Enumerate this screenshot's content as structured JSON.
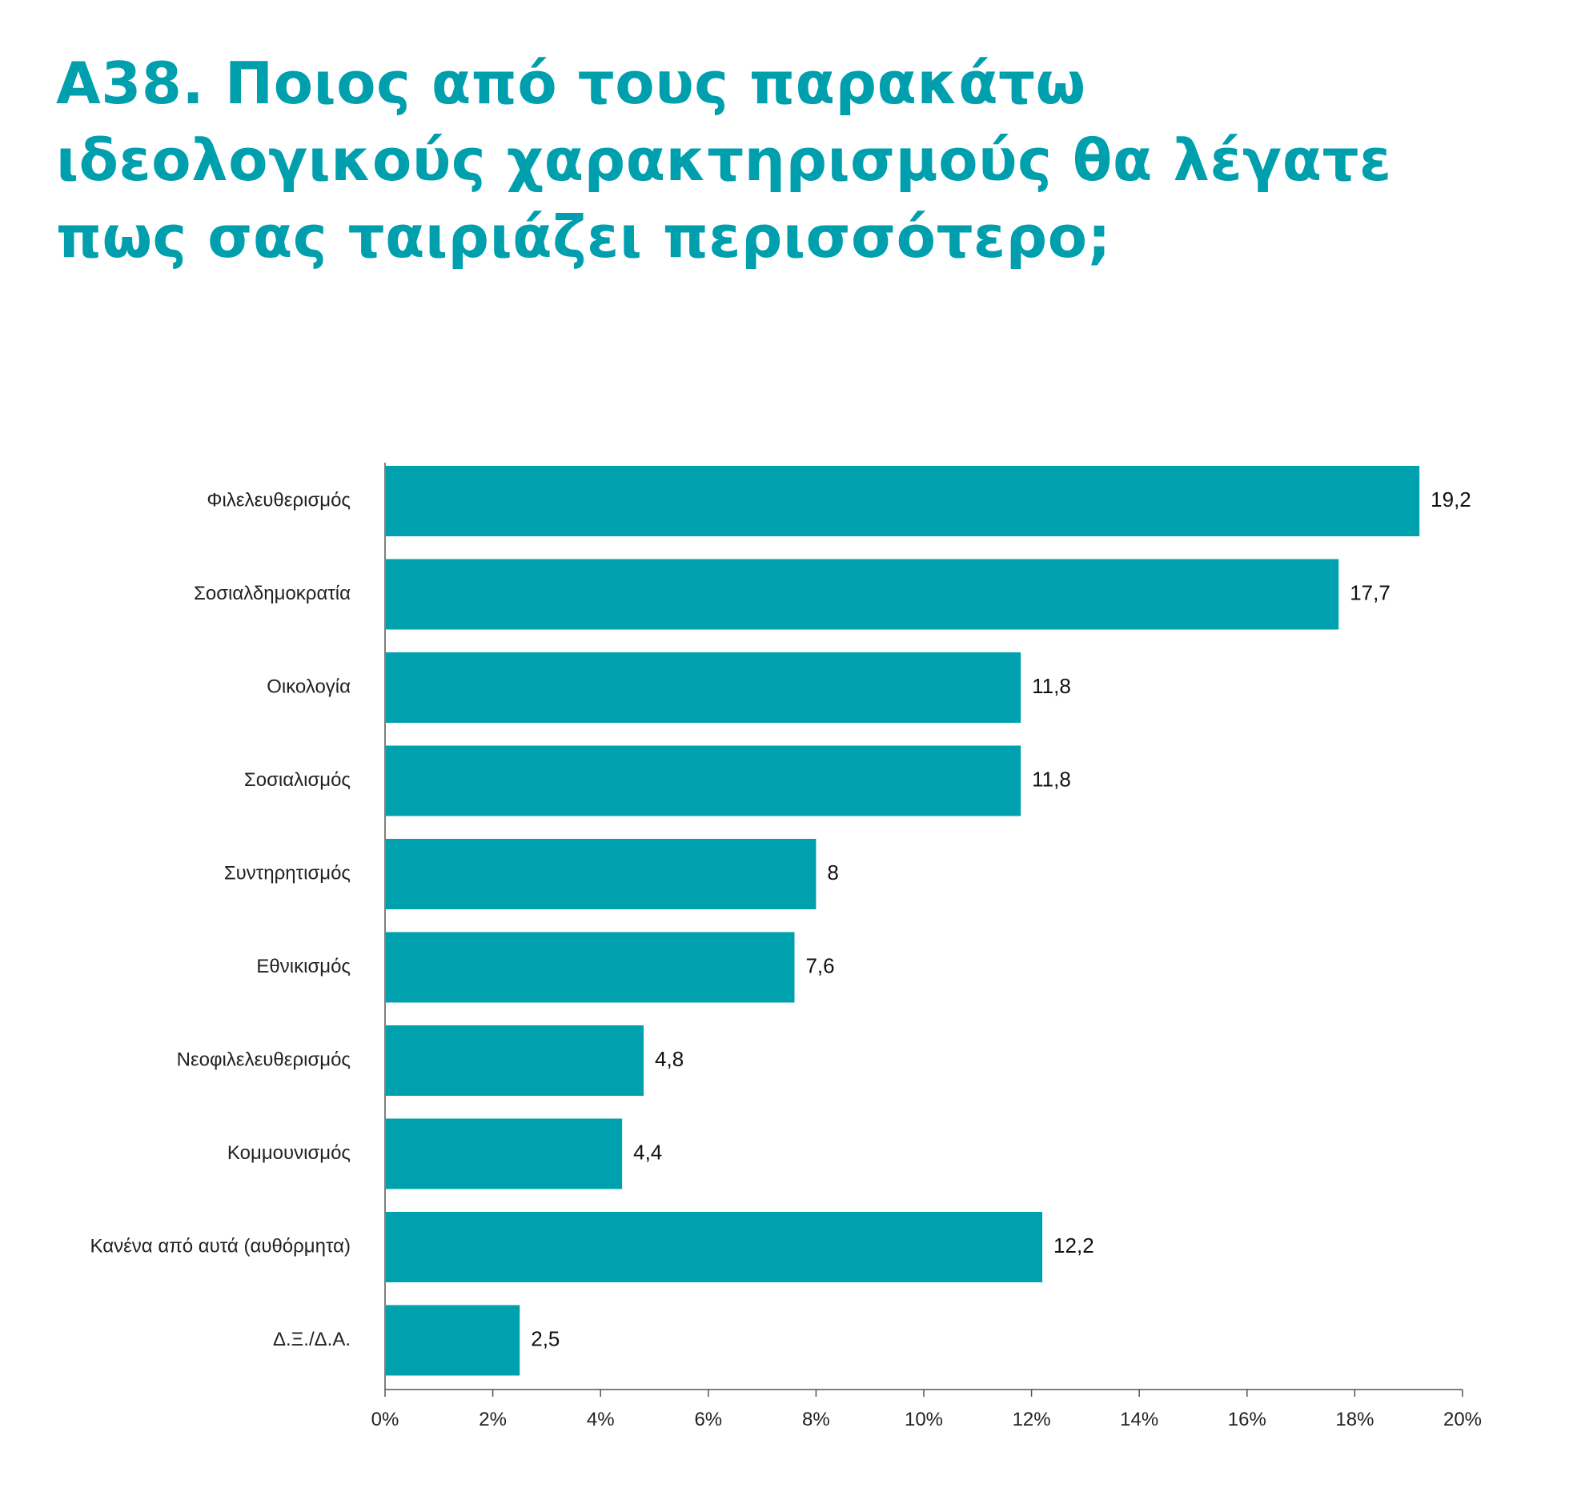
{
  "chart_data": {
    "type": "bar",
    "orientation": "horizontal",
    "title": "Α38. Ποιος από τους παρακάτω ιδεολογικούς χαρακτηρισμούς θα λέγατε πως σας ταιριάζει περισσότερο;",
    "categories": [
      "Φιλελευθερισμός",
      "Σοσιαλδημοκρατία",
      "Οικολογία",
      "Σοσιαλισμός",
      "Συντηρητισμός",
      "Εθνικισμός",
      "Νεοφιλελευθερισμός",
      "Κομμουνισμός",
      "Κανένα από αυτά (αυθόρμητα)",
      "Δ.Ξ./Δ.Α."
    ],
    "values": [
      19.2,
      17.7,
      11.8,
      11.8,
      8,
      7.6,
      4.8,
      4.4,
      12.2,
      2.5
    ],
    "value_labels": [
      "19,2",
      "17,7",
      "11,8",
      "11,8",
      "8",
      "7,6",
      "4,8",
      "4,4",
      "12,2",
      "2,5"
    ],
    "x_ticks": [
      "0%",
      "2%",
      "4%",
      "6%",
      "8%",
      "10%",
      "12%",
      "14%",
      "16%",
      "18%",
      "20%"
    ],
    "xlim": [
      0,
      20
    ],
    "xlabel": "",
    "ylabel": "",
    "grid": false,
    "legend": "none",
    "colors": {
      "bar": "#00a1ae",
      "title": "#009fae",
      "axis": "#555555"
    }
  }
}
